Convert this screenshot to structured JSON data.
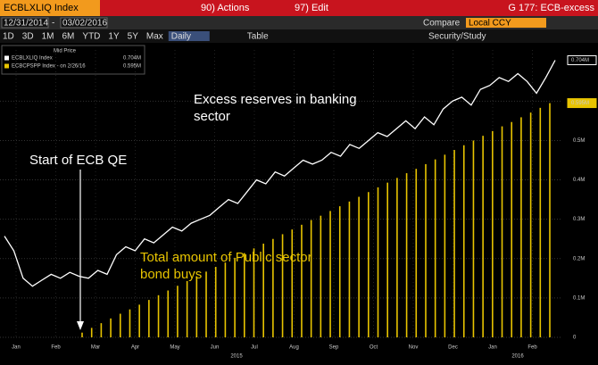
{
  "header": {
    "ticker": "ECBLXLIQ Index",
    "actions": "90) Actions",
    "edit": "97) Edit",
    "chart_name": "G 177: ECB-excess"
  },
  "range_bar": {
    "start": "12/31/2014",
    "separator": "-",
    "end": "03/02/2016",
    "compare": "Compare",
    "currency": "Local CCY"
  },
  "toolbar": {
    "periods": [
      "1D",
      "3D",
      "1M",
      "6M",
      "YTD",
      "1Y",
      "5Y",
      "Max"
    ],
    "frequency": "Daily",
    "table": "Table",
    "study": "Security/Study"
  },
  "chart_data": {
    "type": "bar_line",
    "legend_title": "Mid Price",
    "annotations": {
      "reserves_line1": "Excess reserves in banking",
      "reserves_line2": "sector",
      "qe": "Start of ECB QE",
      "bonds_line1": "Total amount of Public sector",
      "bonds_line2": "bond buys"
    },
    "months": [
      "Jan",
      "Feb",
      "Mar",
      "Apr",
      "May",
      "Jun",
      "Jul",
      "Aug",
      "Sep",
      "Oct",
      "Nov",
      "Dec",
      "Jan",
      "Feb"
    ],
    "years": [
      "2015",
      "2016"
    ],
    "ylim": [
      0,
      0.73
    ],
    "yticks": [
      0,
      {
        "value": 0.1,
        "label": "0.1M"
      },
      {
        "value": 0.2,
        "label": "0.2M"
      },
      {
        "value": 0.3,
        "label": "0.3M"
      },
      {
        "value": 0.4,
        "label": "0.4M"
      },
      {
        "value": 0.5,
        "label": "0.5M"
      },
      {
        "value": 0.6,
        "label": "0.6M"
      }
    ],
    "grid": true,
    "series": [
      {
        "name": "ECBLXLIQ Index",
        "kind": "line",
        "color": "#ffffff",
        "last": {
          "value": 0.704,
          "label": "0.704M"
        },
        "values": [
          0.257,
          0.22,
          0.15,
          0.13,
          0.145,
          0.16,
          0.15,
          0.165,
          0.155,
          0.15,
          0.17,
          0.16,
          0.21,
          0.23,
          0.22,
          0.25,
          0.24,
          0.26,
          0.28,
          0.27,
          0.29,
          0.3,
          0.31,
          0.33,
          0.35,
          0.34,
          0.37,
          0.4,
          0.39,
          0.42,
          0.41,
          0.43,
          0.45,
          0.44,
          0.45,
          0.47,
          0.46,
          0.49,
          0.48,
          0.5,
          0.52,
          0.51,
          0.53,
          0.55,
          0.53,
          0.56,
          0.54,
          0.58,
          0.6,
          0.61,
          0.59,
          0.63,
          0.64,
          0.66,
          0.65,
          0.67,
          0.65,
          0.62,
          0.66,
          0.704
        ]
      },
      {
        "name": "ECBCPSPP Index - on 2/26/16",
        "kind": "bar",
        "color": "#e8c400",
        "last": {
          "value": 0.595,
          "label": "0.595M"
        },
        "values": [
          0.012,
          0.024,
          0.036,
          0.048,
          0.06,
          0.071,
          0.083,
          0.095,
          0.107,
          0.119,
          0.131,
          0.143,
          0.155,
          0.167,
          0.179,
          0.19,
          0.202,
          0.214,
          0.226,
          0.238,
          0.25,
          0.262,
          0.274,
          0.286,
          0.298,
          0.309,
          0.321,
          0.333,
          0.345,
          0.357,
          0.369,
          0.381,
          0.393,
          0.405,
          0.417,
          0.428,
          0.44,
          0.452,
          0.464,
          0.476,
          0.488,
          0.5,
          0.512,
          0.524,
          0.536,
          0.547,
          0.559,
          0.571,
          0.583,
          0.595
        ]
      }
    ]
  }
}
